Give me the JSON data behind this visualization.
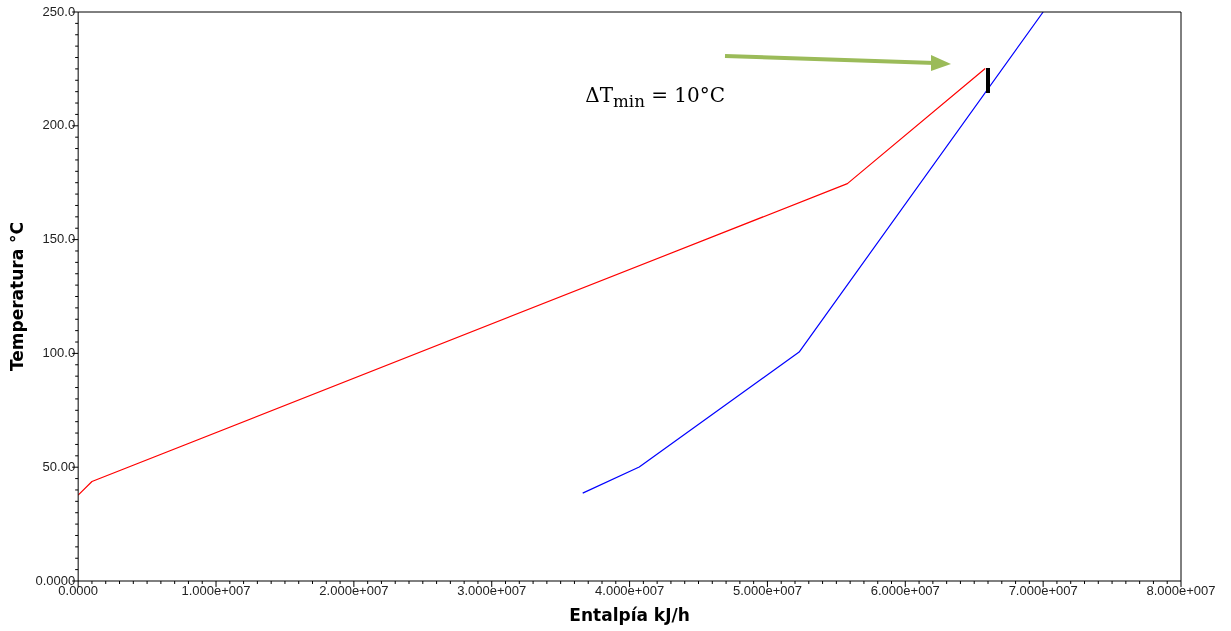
{
  "chart_data": {
    "type": "line",
    "xlabel": "Entalpía kJ/h",
    "ylabel": "Temperatura °C",
    "annotations": [
      "ΔT$_{min}$ = 10°C"
    ],
    "series": [
      {
        "color": "#ff0000",
        "x": [
          0,
          1000000,
          55800000,
          65800000
        ],
        "values": [
          37.7,
          43.7,
          174.6,
          225.2
        ]
      },
      {
        "color": "#0000ff",
        "x": [
          36600000,
          40700000,
          52300000,
          70000000
        ],
        "values": [
          38.6,
          50.1,
          100.6,
          250
        ]
      }
    ],
    "xlim": [
      0,
      80000000
    ],
    "ylim": [
      0,
      250
    ],
    "xticks": [
      {
        "value": 0,
        "label": "0.0000"
      },
      {
        "value": 10000000,
        "label": "1.000e+007"
      },
      {
        "value": 20000000,
        "label": "2.000e+007"
      },
      {
        "value": 30000000,
        "label": "3.000e+007"
      },
      {
        "value": 40000000,
        "label": "4.000e+007"
      },
      {
        "value": 50000000,
        "label": "5.000e+007"
      },
      {
        "value": 60000000,
        "label": "6.000e+007"
      },
      {
        "value": 70000000,
        "label": "7.000e+007"
      },
      {
        "value": 80000000,
        "label": "8.000e+007"
      }
    ],
    "yticks": [
      {
        "value": 0,
        "label": "0.0000"
      },
      {
        "value": 50,
        "label": "50.00"
      },
      {
        "value": 100,
        "label": "100.0"
      },
      {
        "value": 150,
        "label": "150.0"
      },
      {
        "value": 200,
        "label": "200.0"
      },
      {
        "value": 250,
        "label": "250.0"
      }
    ],
    "grid": false,
    "legend": false,
    "marker": "none",
    "line_style": "solid"
  }
}
